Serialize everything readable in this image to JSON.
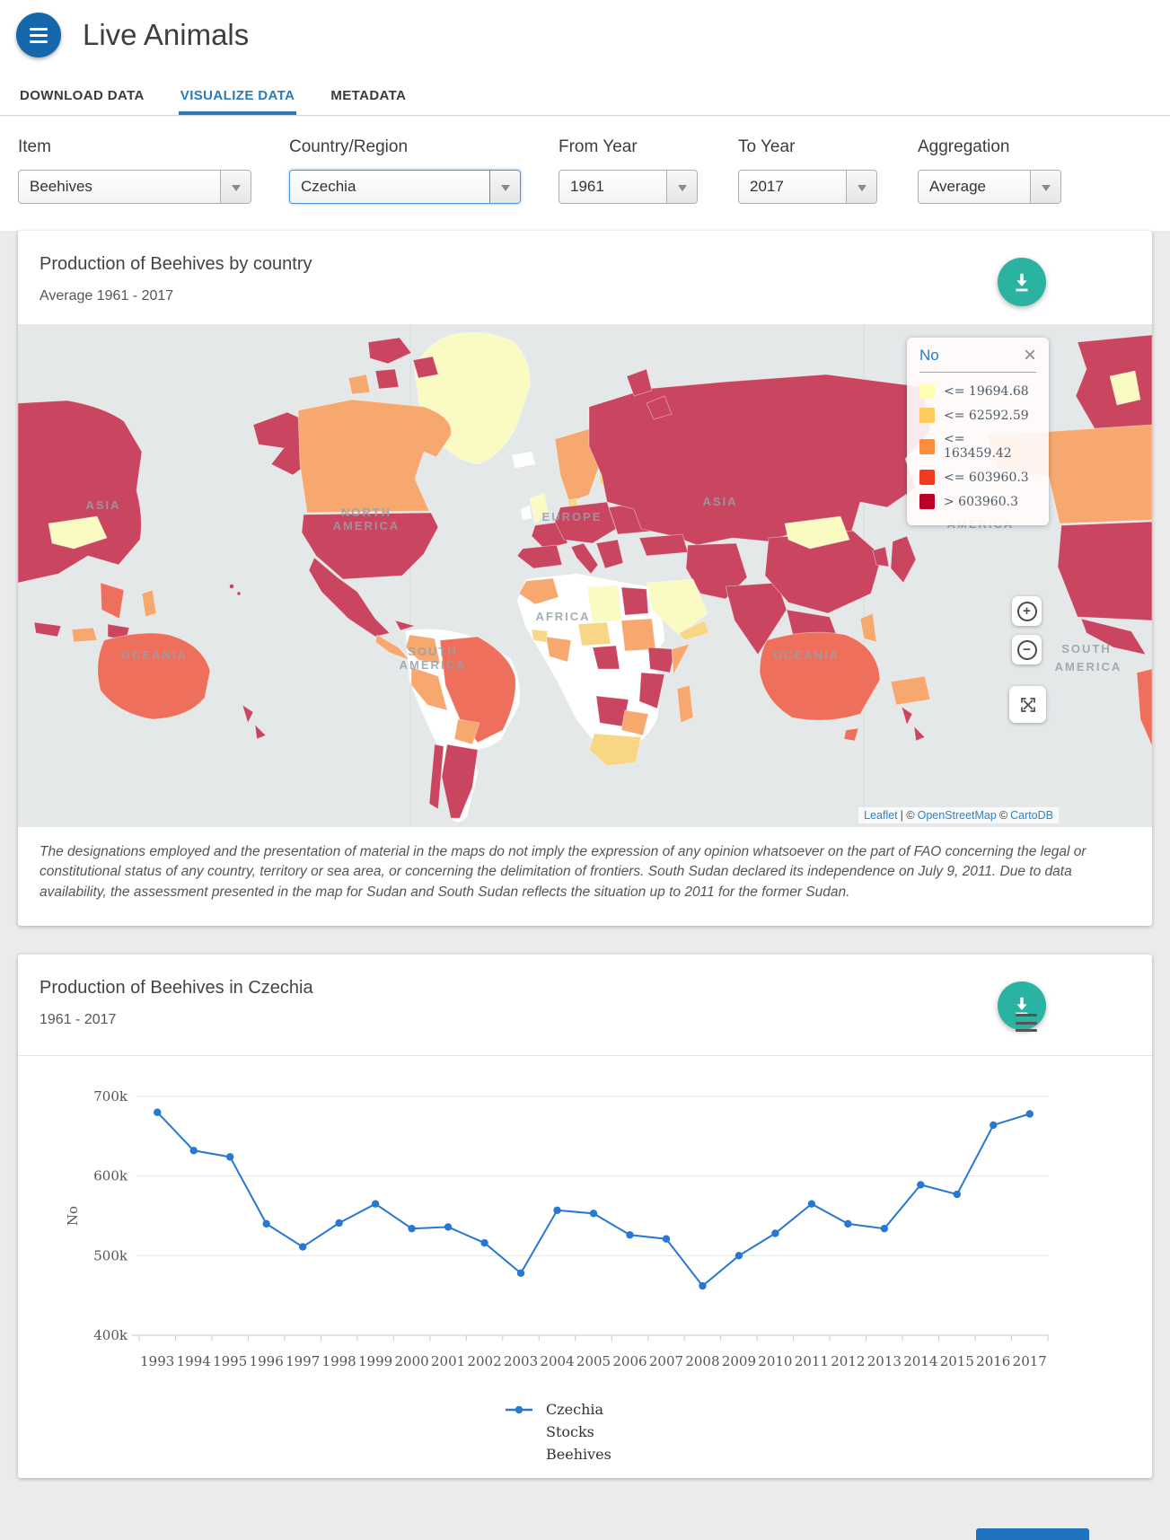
{
  "page": {
    "title": "Live Animals"
  },
  "tabs": [
    {
      "label": "DOWNLOAD DATA",
      "active": false
    },
    {
      "label": "VISUALIZE DATA",
      "active": true
    },
    {
      "label": "METADATA",
      "active": false
    }
  ],
  "filters": [
    {
      "label": "Item",
      "value": "Beehives",
      "focused": false
    },
    {
      "label": "Country/Region",
      "value": "Czechia",
      "focused": true
    },
    {
      "label": "From Year",
      "value": "1961",
      "focused": false
    },
    {
      "label": "To Year",
      "value": "2017",
      "focused": false
    },
    {
      "label": "Aggregation",
      "value": "Average",
      "focused": false
    }
  ],
  "map_card": {
    "title": "Production of Beehives by country",
    "subtitle": "Average 1961 - 2017",
    "legend": {
      "title": "No",
      "items": [
        {
          "label": "<= 19694.68",
          "color": "#ffffb2"
        },
        {
          "label": "<= 62592.59",
          "color": "#fecc5c"
        },
        {
          "label": "<= 163459.42",
          "color": "#fd8d3c"
        },
        {
          "label": "<= 603960.3",
          "color": "#f03b20"
        },
        {
          "label": "> 603960.3",
          "color": "#bd0026"
        }
      ]
    },
    "controls": {
      "zoom_in": "+",
      "zoom_out": "−"
    },
    "continent_labels": [
      "ASIA",
      "NORTH",
      "AMERICA",
      "EUROPE",
      "ASIA",
      "AFRICA",
      "SOUTH",
      "AMERICA",
      "OCEANIA",
      "OCEANIA",
      "AMERICA",
      "SOUTH",
      "AMERICA"
    ],
    "attribution": {
      "leaflet": "Leaflet",
      "sep1": "| ©",
      "osm": "OpenStreetMap",
      "sep2": "©",
      "carto": "CartoDB"
    },
    "disclaimer": "The designations employed and the presentation of material in the maps do not imply the expression of any opinion whatsoever on the part of FAO concerning the legal or constitutional status of any country, territory or sea area, or concerning the delimitation of frontiers. South Sudan declared its independence on July 9, 2011. Due to data availability, the assessment presented in the map for Sudan and South Sudan reflects the situation up to 2011 for the former Sudan.",
    "palette": {
      "bin1": "#fafac3",
      "bin2": "#f7d686",
      "bin3": "#f6a86f",
      "bin4": "#ee6f5c",
      "bin5": "#ca4660",
      "no_data": "#ffffff",
      "ocean": "#e4e8e9"
    }
  },
  "chart_card": {
    "title": "Production of Beehives in Czechia",
    "subtitle": "1961 - 2017"
  },
  "chart_data": {
    "type": "line",
    "title": "Production of Beehives in Czechia",
    "subtitle": "1961 - 2017",
    "xlabel": "",
    "ylabel": "No",
    "ylim": [
      400000,
      700000
    ],
    "ytick_values": [
      400000,
      500000,
      600000,
      700000
    ],
    "ytick_labels": [
      "400k",
      "500k",
      "600k",
      "700k"
    ],
    "grid": true,
    "legend_position": "bottom",
    "categories": [
      1993,
      1994,
      1995,
      1996,
      1997,
      1998,
      1999,
      2000,
      2001,
      2002,
      2003,
      2004,
      2005,
      2006,
      2007,
      2008,
      2009,
      2010,
      2011,
      2012,
      2013,
      2014,
      2015,
      2016,
      2017
    ],
    "series": [
      {
        "name": "Czechia Stocks Beehives",
        "color": "#2678d1",
        "values": [
          680000,
          632000,
          624000,
          540000,
          511000,
          541000,
          565000,
          534000,
          536000,
          516000,
          478000,
          557000,
          553000,
          526000,
          521000,
          462000,
          500000,
          528000,
          565000,
          540000,
          534000,
          589000,
          577000,
          664000,
          678000
        ]
      }
    ],
    "legend_lines": [
      "Czechia",
      "Stocks",
      "Beehives"
    ]
  },
  "colors": {
    "accent_blue": "#2a7ab9",
    "teal_button": "#2bb3a2",
    "header_circle": "#1467ab",
    "chart_line": "#2678d1",
    "footer_button": "#2273bf"
  }
}
